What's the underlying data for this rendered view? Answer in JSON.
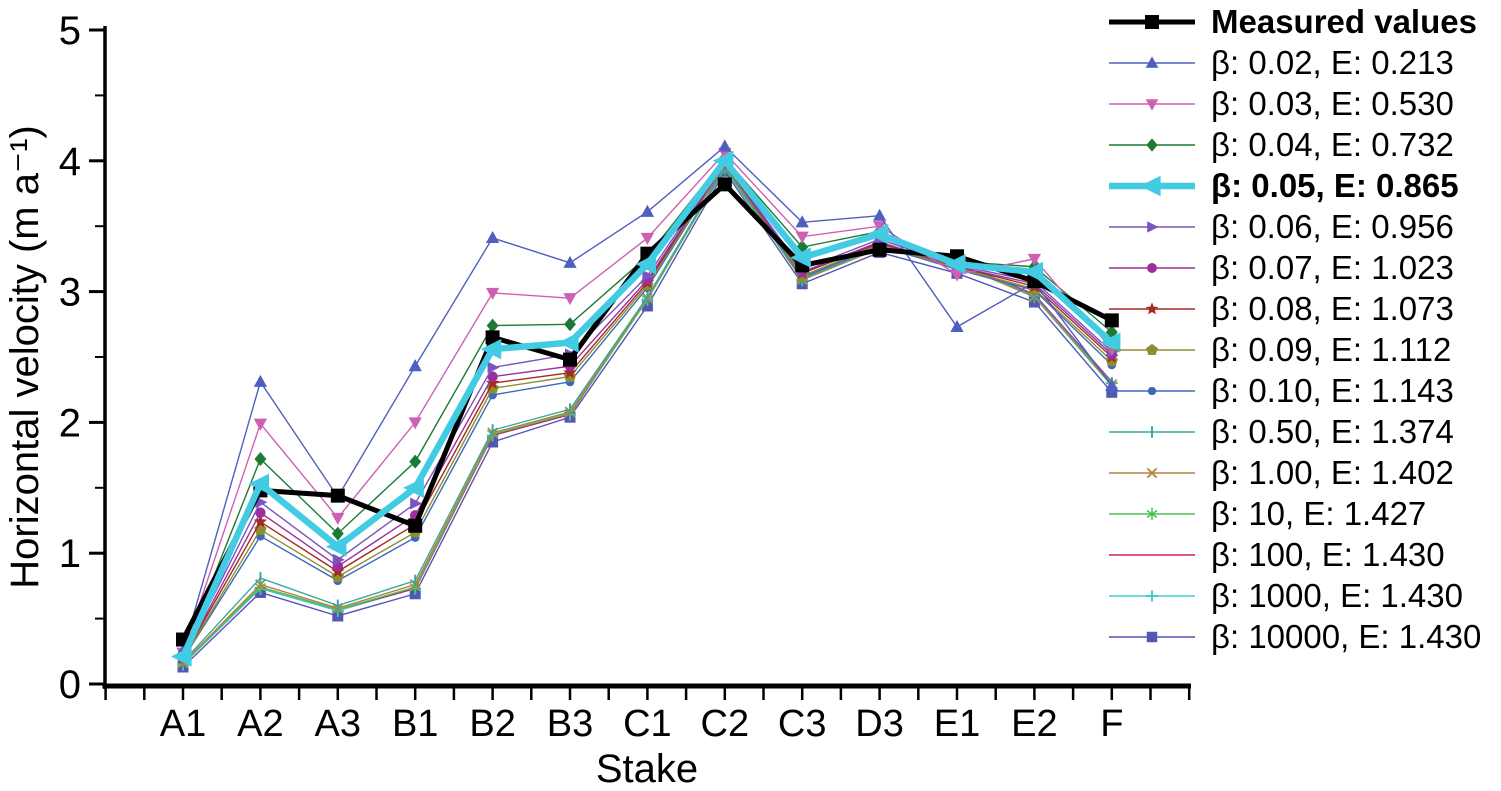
{
  "chart_data": {
    "type": "line",
    "title": "",
    "xlabel": "Stake",
    "ylabel": "Horizontal velocity  (m a⁻¹)",
    "categories": [
      "A1",
      "A2",
      "A3",
      "B1",
      "B2",
      "B3",
      "C1",
      "C2",
      "C3",
      "D3",
      "E1",
      "E2",
      "F"
    ],
    "ylim": [
      0,
      5
    ],
    "y_major_ticks": [
      0,
      1,
      2,
      3,
      4,
      5
    ],
    "y_minor_step": 0.5,
    "grid": false,
    "legend_position": "right",
    "axes_style": "left-bottom-only",
    "series": [
      {
        "name": "Measured values",
        "color": "#000000",
        "marker": "square",
        "bold": true,
        "line_width": 5,
        "marker_size": 7,
        "values": [
          0.34,
          1.48,
          1.44,
          1.21,
          2.65,
          2.48,
          3.29,
          3.82,
          3.2,
          3.32,
          3.27,
          3.08,
          2.78
        ]
      },
      {
        "name": "β: 0.02, E: 0.213",
        "color": "#4e5fc0",
        "marker": "triangle-up",
        "bold": false,
        "line_width": 1.4,
        "marker_size": 7,
        "values": [
          0.25,
          2.31,
          1.43,
          2.43,
          3.41,
          3.22,
          3.61,
          4.11,
          3.53,
          3.58,
          2.73,
          3.07,
          2.28
        ]
      },
      {
        "name": "β: 0.03, E: 0.530",
        "color": "#cf5fb4",
        "marker": "triangle-down",
        "bold": false,
        "line_width": 1.4,
        "marker_size": 7,
        "values": [
          0.24,
          1.99,
          1.27,
          2.0,
          2.99,
          2.95,
          3.41,
          4.06,
          3.42,
          3.5,
          3.13,
          3.25,
          2.56
        ]
      },
      {
        "name": "β: 0.04, E: 0.732",
        "color": "#1d7a36",
        "marker": "diamond",
        "bold": false,
        "line_width": 1.4,
        "marker_size": 7,
        "values": [
          0.23,
          1.72,
          1.15,
          1.7,
          2.74,
          2.75,
          3.27,
          4.02,
          3.34,
          3.46,
          3.23,
          3.19,
          2.69
        ]
      },
      {
        "name": "β: 0.05, E: 0.865",
        "color": "#44cbe4",
        "marker": "triangle-left",
        "bold": true,
        "line_width": 6.5,
        "marker_size": 12,
        "values": [
          0.21,
          1.53,
          1.05,
          1.5,
          2.56,
          2.61,
          3.21,
          4.0,
          3.26,
          3.44,
          3.21,
          3.15,
          2.61
        ]
      },
      {
        "name": "β: 0.06, E: 0.956",
        "color": "#7a54c0",
        "marker": "triangle-right",
        "bold": false,
        "line_width": 1.4,
        "marker_size": 7,
        "values": [
          0.21,
          1.39,
          0.95,
          1.38,
          2.42,
          2.52,
          3.12,
          3.99,
          3.17,
          3.4,
          3.2,
          3.08,
          2.54
        ]
      },
      {
        "name": "β: 0.07, E: 1.023",
        "color": "#9c2f9c",
        "marker": "circle",
        "bold": false,
        "line_width": 1.4,
        "marker_size": 6.5,
        "values": [
          0.2,
          1.31,
          0.9,
          1.29,
          2.35,
          2.43,
          3.09,
          3.98,
          3.15,
          3.38,
          3.19,
          3.06,
          2.52
        ]
      },
      {
        "name": "β: 0.08, E: 1.073",
        "color": "#a42a28",
        "marker": "star",
        "bold": false,
        "line_width": 1.4,
        "marker_size": 7,
        "values": [
          0.2,
          1.24,
          0.86,
          1.22,
          2.3,
          2.38,
          3.07,
          3.98,
          3.14,
          3.37,
          3.19,
          3.04,
          2.5
        ]
      },
      {
        "name": "β: 0.09, E: 1.112",
        "color": "#8e8e2e",
        "marker": "pentagon",
        "bold": false,
        "line_width": 1.4,
        "marker_size": 6.5,
        "values": [
          0.19,
          1.18,
          0.82,
          1.16,
          2.26,
          2.35,
          3.05,
          3.97,
          3.12,
          3.36,
          3.18,
          3.02,
          2.47
        ]
      },
      {
        "name": "β: 0.10, E: 1.143",
        "color": "#3a6ac0",
        "marker": "circle",
        "bold": false,
        "line_width": 1.4,
        "marker_size": 5.5,
        "values": [
          0.19,
          1.13,
          0.79,
          1.12,
          2.21,
          2.31,
          3.03,
          3.97,
          3.11,
          3.35,
          3.17,
          3.01,
          2.44
        ]
      },
      {
        "name": "β: 0.50, E: 1.374",
        "color": "#39a8a4",
        "marker": "vline",
        "bold": false,
        "line_width": 1.4,
        "marker_size": 6,
        "values": [
          0.17,
          0.81,
          0.6,
          0.79,
          1.94,
          2.1,
          2.96,
          3.95,
          3.1,
          3.34,
          3.22,
          2.97,
          2.3
        ]
      },
      {
        "name": "β: 1.00, E: 1.402",
        "color": "#b5823e",
        "marker": "xcross",
        "bold": false,
        "line_width": 1.4,
        "marker_size": 6,
        "values": [
          0.16,
          0.76,
          0.58,
          0.76,
          1.92,
          2.08,
          2.95,
          3.95,
          3.09,
          3.33,
          3.21,
          2.96,
          2.29
        ]
      },
      {
        "name": "β: 10, E: 1.427",
        "color": "#4cc455",
        "marker": "asterisk",
        "bold": false,
        "line_width": 1.4,
        "marker_size": 6.5,
        "values": [
          0.16,
          0.74,
          0.57,
          0.74,
          1.91,
          2.07,
          2.94,
          3.94,
          3.09,
          3.33,
          3.21,
          2.96,
          2.28
        ]
      },
      {
        "name": "β: 100, E: 1.430",
        "color": "#d61e72",
        "marker": "none",
        "bold": false,
        "line_width": 1.4,
        "marker_size": 0,
        "values": [
          0.16,
          0.74,
          0.57,
          0.73,
          1.9,
          2.06,
          2.95,
          3.96,
          3.1,
          3.34,
          3.22,
          2.98,
          2.31
        ]
      },
      {
        "name": "β: 1000, E: 1.430",
        "color": "#41ccd4",
        "marker": "plus",
        "bold": false,
        "line_width": 1.4,
        "marker_size": 6,
        "values": [
          0.15,
          0.73,
          0.56,
          0.73,
          1.9,
          2.06,
          2.94,
          3.95,
          3.09,
          3.34,
          3.21,
          2.97,
          2.3
        ]
      },
      {
        "name": "β: 10000, E: 1.430",
        "color": "#5257b6",
        "marker": "square",
        "bold": false,
        "line_width": 1.4,
        "marker_size": 5.5,
        "values": [
          0.13,
          0.7,
          0.52,
          0.69,
          1.85,
          2.04,
          2.89,
          3.92,
          3.06,
          3.3,
          3.14,
          2.92,
          2.23
        ]
      }
    ]
  }
}
